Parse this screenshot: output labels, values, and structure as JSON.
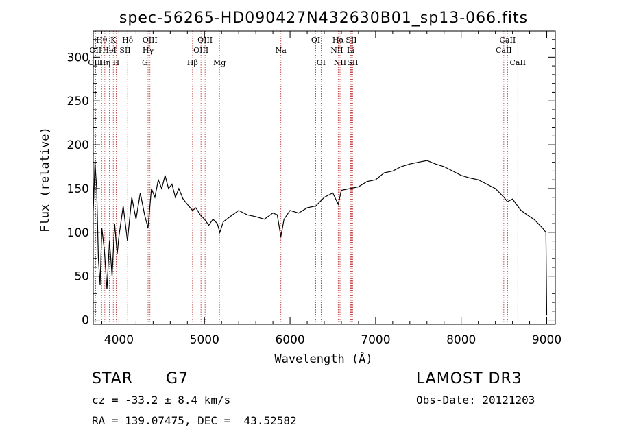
{
  "chart_data": {
    "type": "line",
    "title": "spec-56265-HD090427N432630B01_sp13-066.fits",
    "xlabel": "Wavelength (Å)",
    "ylabel": "Flux (relative)",
    "xlim": [
      3700,
      9100
    ],
    "ylim": [
      -5,
      330
    ],
    "xticks": [
      4000,
      5000,
      6000,
      7000,
      8000,
      9000
    ],
    "xticks_minor_step": 200,
    "yticks": [
      0,
      50,
      100,
      150,
      200,
      250,
      300
    ],
    "yticks_minor_step": 10,
    "line_color": "#000000",
    "marker_color": "#b22222",
    "series": [
      {
        "name": "flux",
        "x": [
          3700,
          3720,
          3740,
          3760,
          3780,
          3800,
          3830,
          3860,
          3890,
          3920,
          3950,
          3980,
          4000,
          4050,
          4100,
          4150,
          4200,
          4250,
          4300,
          4340,
          4380,
          4420,
          4460,
          4500,
          4540,
          4580,
          4620,
          4660,
          4700,
          4750,
          4800,
          4860,
          4900,
          4950,
          5000,
          5050,
          5100,
          5150,
          5180,
          5220,
          5300,
          5400,
          5500,
          5600,
          5700,
          5800,
          5850,
          5893,
          5930,
          6000,
          6100,
          6200,
          6300,
          6400,
          6500,
          6563,
          6600,
          6700,
          6800,
          6900,
          7000,
          7100,
          7200,
          7300,
          7400,
          7500,
          7600,
          7700,
          7800,
          7900,
          8000,
          8100,
          8200,
          8300,
          8400,
          8500,
          8540,
          8600,
          8660,
          8700,
          8800,
          8850,
          8900,
          8950,
          8990,
          9000
        ],
        "y": [
          125,
          180,
          150,
          70,
          40,
          105,
          80,
          35,
          90,
          50,
          110,
          75,
          95,
          130,
          90,
          140,
          115,
          145,
          120,
          105,
          150,
          140,
          160,
          150,
          165,
          150,
          155,
          140,
          150,
          138,
          132,
          125,
          128,
          120,
          115,
          108,
          115,
          110,
          100,
          112,
          118,
          125,
          120,
          118,
          115,
          122,
          120,
          95,
          115,
          125,
          122,
          128,
          130,
          140,
          145,
          132,
          148,
          150,
          152,
          158,
          160,
          168,
          170,
          175,
          178,
          180,
          182,
          178,
          175,
          170,
          165,
          162,
          160,
          155,
          150,
          140,
          135,
          138,
          130,
          125,
          118,
          115,
          110,
          105,
          100,
          5
        ]
      }
    ],
    "lines": [
      {
        "name": "Hθ",
        "wave": 3798,
        "row": 0
      },
      {
        "name": "OII",
        "wave": 3727,
        "row": 1
      },
      {
        "name": "OIII",
        "wave": 3727,
        "row": 2
      },
      {
        "name": "K",
        "wave": 3934,
        "row": 0
      },
      {
        "name": "HeI",
        "wave": 3889,
        "row": 1
      },
      {
        "name": "Hη",
        "wave": 3835,
        "row": 2
      },
      {
        "name": "SII",
        "wave": 4072,
        "row": 1
      },
      {
        "name": "H",
        "wave": 3968,
        "row": 2
      },
      {
        "name": "Hδ",
        "wave": 4102,
        "row": 0
      },
      {
        "name": "OIII",
        "wave": 4363,
        "row": 0
      },
      {
        "name": "Hγ",
        "wave": 4341,
        "row": 1
      },
      {
        "name": "G",
        "wave": 4304,
        "row": 2
      },
      {
        "name": "OIII",
        "wave": 5007,
        "row": 0
      },
      {
        "name": "OIII",
        "wave": 4959,
        "row": 1
      },
      {
        "name": "Hβ",
        "wave": 4861,
        "row": 2
      },
      {
        "name": "Mg",
        "wave": 5175,
        "row": 2
      },
      {
        "name": "Na",
        "wave": 5893,
        "row": 1
      },
      {
        "name": "OI",
        "wave": 6300,
        "row": 0
      },
      {
        "name": "OI",
        "wave": 6363,
        "row": 2
      },
      {
        "name": "Hα",
        "wave": 6563,
        "row": 0
      },
      {
        "name": "NII",
        "wave": 6548,
        "row": 1
      },
      {
        "name": "NII",
        "wave": 6584,
        "row": 2
      },
      {
        "name": "SII",
        "wave": 6716,
        "row": 0
      },
      {
        "name": "Li",
        "wave": 6708,
        "row": 1
      },
      {
        "name": "SII",
        "wave": 6731,
        "row": 2
      },
      {
        "name": "CaII",
        "wave": 8542,
        "row": 0
      },
      {
        "name": "CaII",
        "wave": 8498,
        "row": 1
      },
      {
        "name": "CaII",
        "wave": 8662,
        "row": 2
      }
    ]
  },
  "info": {
    "class_label": "STAR",
    "subclass": "G7",
    "survey": "LAMOST DR3",
    "velocity": "cz = -33.2 ± 8.4 km/s",
    "obs_date": "Obs-Date: 20121203",
    "coords": "RA = 139.07475, DEC =  43.52582"
  }
}
